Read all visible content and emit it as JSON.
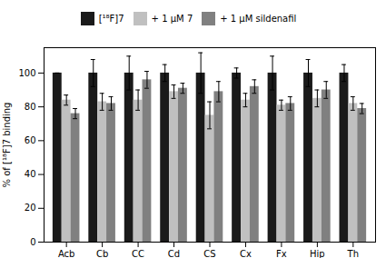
{
  "chart_data": {
    "type": "bar",
    "categories": [
      "Acb",
      "Cb",
      "CC",
      "Cd",
      "CS",
      "Cx",
      "Fx",
      "Hip",
      "Th"
    ],
    "series": [
      {
        "name": "[¹⁸F]7",
        "color": "#1a1a1a",
        "values": [
          100,
          100,
          100,
          100,
          100,
          100,
          100,
          100,
          100
        ],
        "errors": [
          0,
          8,
          10,
          5,
          12,
          3,
          10,
          8,
          5
        ]
      },
      {
        "name": "+ 1 μM 7",
        "color": "#c0c0c0",
        "values": [
          84,
          83,
          84,
          89,
          75,
          84,
          81,
          85,
          82
        ],
        "errors": [
          3,
          5,
          6,
          4,
          8,
          4,
          3,
          5,
          4
        ]
      },
      {
        "name": "+ 1 μM sildenafil",
        "color": "#808080",
        "values": [
          76,
          82,
          96,
          91,
          89,
          92,
          82,
          90,
          79
        ],
        "errors": [
          3,
          4,
          5,
          3,
          6,
          4,
          4,
          5,
          3
        ]
      }
    ],
    "ylabel": "% of [¹⁸F]7 binding",
    "ylim": [
      0,
      115
    ],
    "yticks": [
      0,
      20,
      40,
      60,
      80,
      100
    ],
    "legend": "top",
    "grid": false
  }
}
